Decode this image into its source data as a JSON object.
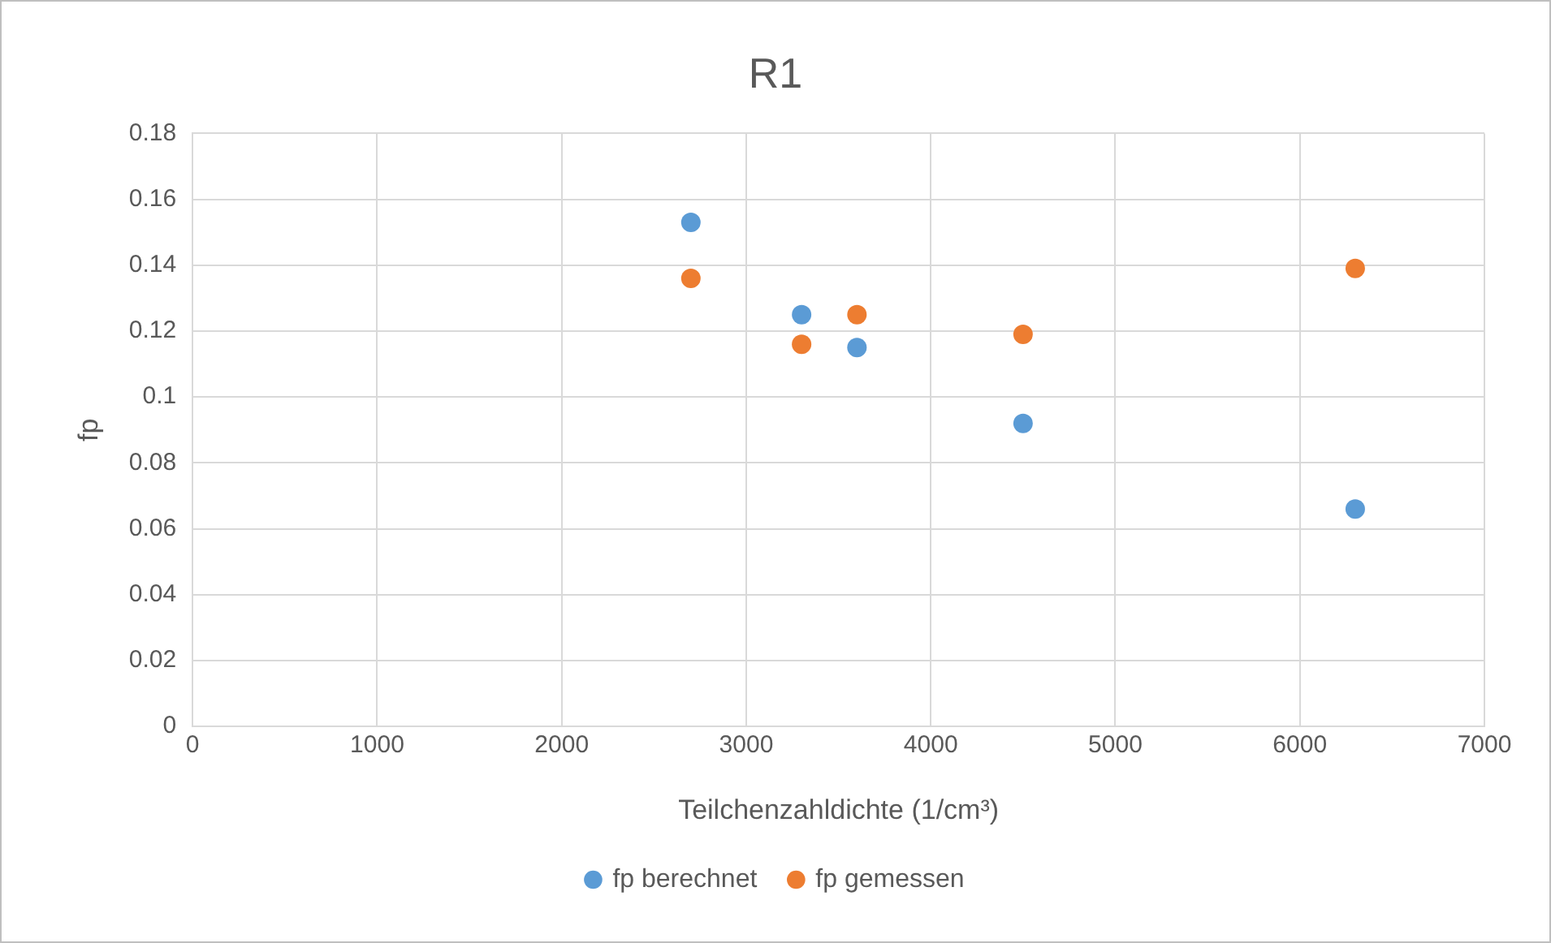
{
  "chart_data": {
    "type": "scatter",
    "title": "R1",
    "xlabel": "Teilchenzahldichte (1/cm³)",
    "ylabel": "fp",
    "xlim": [
      0,
      7000
    ],
    "xticks": [
      0,
      1000,
      2000,
      3000,
      4000,
      5000,
      6000,
      7000
    ],
    "ylim": [
      0,
      0.18
    ],
    "yticks": [
      0,
      0.02,
      0.04,
      0.06,
      0.08,
      0.1,
      0.12,
      0.14,
      0.16,
      0.18
    ],
    "grid": true,
    "legend": "bottom",
    "marker": "circle",
    "series": [
      {
        "name": "fp berechnet",
        "color": "#5b9bd5",
        "x": [
          2700,
          3300,
          3600,
          4500,
          6300
        ],
        "values": [
          0.153,
          0.125,
          0.115,
          0.092,
          0.066
        ]
      },
      {
        "name": "fp gemessen",
        "color": "#ed7d31",
        "x": [
          2700,
          3300,
          3600,
          4500,
          6300
        ],
        "values": [
          0.136,
          0.116,
          0.125,
          0.119,
          0.139
        ]
      }
    ]
  }
}
